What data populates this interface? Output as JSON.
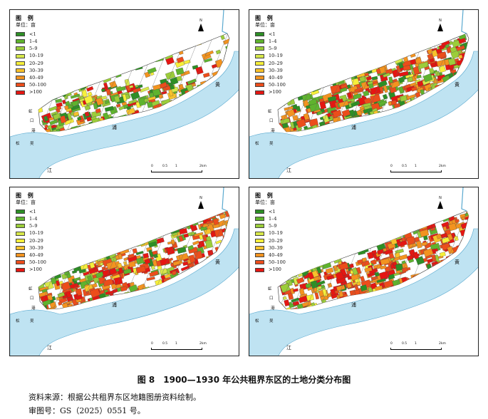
{
  "panels": [
    {
      "id": "p1"
    },
    {
      "id": "p2"
    },
    {
      "id": "p3"
    },
    {
      "id": "p4"
    }
  ],
  "legend": {
    "title": "图 例",
    "unit": "单位：亩",
    "classes": [
      {
        "label": "<1",
        "color": "#2d8f25"
      },
      {
        "label": "1–4",
        "color": "#5fb32e"
      },
      {
        "label": "5–9",
        "color": "#9bcd3a"
      },
      {
        "label": "10–19",
        "color": "#d7e84a"
      },
      {
        "label": "20–29",
        "color": "#f6ef3a"
      },
      {
        "label": "30–39",
        "color": "#f8c22a"
      },
      {
        "label": "40–49",
        "color": "#f3931f"
      },
      {
        "label": "50–100",
        "color": "#ec4d1b"
      },
      {
        "label": ">100",
        "color": "#e51612"
      }
    ]
  },
  "north": {
    "letter": "N",
    "icon": "north-arrow"
  },
  "scale": {
    "ticks": [
      "0",
      "0.5",
      "1",
      "2km"
    ]
  },
  "map_labels": {
    "huangpu_left": "浦",
    "huangpu_right": "黄",
    "suzhou_a": "松",
    "suzhou_b": "吴",
    "suzhou_c": "江",
    "hongkou_a": "虹",
    "hongkou_b": "口",
    "hongkou_c": "港"
  },
  "caption": "图 8　1900—1930 年公共租界东区的土地分类分布图",
  "source_note": "资料来源：根据公共租界东区地籍图册资料绘制。",
  "approval_note": "审图号：GS（2025）0551 号。"
}
